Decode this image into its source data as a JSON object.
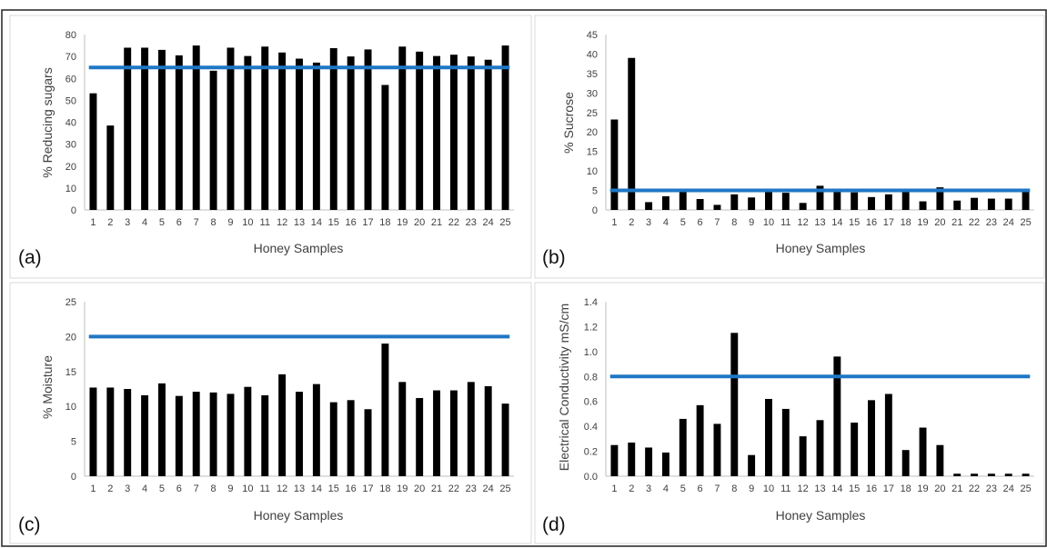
{
  "figure": {
    "colors": {
      "bar": "#000000",
      "threshold_line": "#1f77c4",
      "panel_border": "#d9d9d9",
      "axis": "#bfbfbf"
    }
  },
  "chart_data": [
    {
      "panel": "(a)",
      "type": "bar",
      "title": "",
      "xlabel": "Honey Samples",
      "ylabel": "% Reducing sugars",
      "ylim": [
        0,
        80
      ],
      "yticks": [
        "0",
        "10",
        "20",
        "30",
        "40",
        "50",
        "60",
        "70",
        "80"
      ],
      "categories": [
        "1",
        "2",
        "3",
        "4",
        "5",
        "6",
        "7",
        "8",
        "9",
        "10",
        "11",
        "12",
        "13",
        "14",
        "15",
        "16",
        "17",
        "18",
        "19",
        "20",
        "21",
        "22",
        "23",
        "24",
        "25"
      ],
      "values": [
        53.2,
        38.5,
        74,
        74,
        73,
        70.5,
        75,
        63.5,
        74,
        70.2,
        74.5,
        71.8,
        69,
        67.2,
        73.8,
        70,
        73.2,
        57,
        74.5,
        72.2,
        70.2,
        70.8,
        70,
        68.5,
        75
      ],
      "threshold": 65,
      "grid": false
    },
    {
      "panel": "(b)",
      "type": "bar",
      "title": "",
      "xlabel": "Honey Samples",
      "ylabel": "% Sucrose",
      "ylim": [
        0,
        45
      ],
      "yticks": [
        "0",
        "5",
        "10",
        "15",
        "20",
        "25",
        "30",
        "35",
        "40",
        "45"
      ],
      "categories": [
        "1",
        "2",
        "3",
        "4",
        "5",
        "6",
        "7",
        "8",
        "9",
        "10",
        "11",
        "12",
        "13",
        "14",
        "15",
        "16",
        "17",
        "18",
        "19",
        "20",
        "21",
        "22",
        "23",
        "24",
        "25"
      ],
      "values": [
        23.2,
        39,
        2,
        3.5,
        4.8,
        2.8,
        1.3,
        4,
        3.2,
        4.7,
        4.4,
        1.8,
        6.2,
        5,
        4.5,
        3.3,
        4,
        4.8,
        2.2,
        5.8,
        2.4,
        3.1,
        2.9,
        2.9,
        5
      ],
      "threshold": 5,
      "grid": false
    },
    {
      "panel": "(c)",
      "type": "bar",
      "title": "",
      "xlabel": "Honey Samples",
      "ylabel": "% Moisture",
      "ylim": [
        0,
        25
      ],
      "yticks": [
        "0",
        "5",
        "10",
        "15",
        "20",
        "25"
      ],
      "categories": [
        "1",
        "2",
        "3",
        "4",
        "5",
        "6",
        "7",
        "8",
        "9",
        "10",
        "11",
        "12",
        "13",
        "14",
        "15",
        "16",
        "17",
        "18",
        "19",
        "20",
        "21",
        "22",
        "23",
        "24",
        "25"
      ],
      "values": [
        12.7,
        12.7,
        12.5,
        11.6,
        13.3,
        11.5,
        12.1,
        12,
        11.8,
        12.8,
        11.6,
        14.6,
        12.1,
        13.2,
        10.6,
        10.9,
        9.6,
        19,
        13.5,
        11.2,
        12.3,
        12.3,
        13.5,
        12.9,
        10.4
      ],
      "threshold": 20,
      "grid": false
    },
    {
      "panel": "(d)",
      "type": "bar",
      "title": "",
      "xlabel": "Honey Samples",
      "ylabel": "Electrical Conductivity mS/cm",
      "ylim": [
        0,
        1.4
      ],
      "yticks": [
        "0.0",
        "0.2",
        "0.4",
        "0.6",
        "0.8",
        "1.0",
        "1.2",
        "1.4"
      ],
      "categories": [
        "1",
        "2",
        "3",
        "4",
        "5",
        "6",
        "7",
        "8",
        "9",
        "10",
        "11",
        "12",
        "13",
        "14",
        "15",
        "16",
        "17",
        "18",
        "19",
        "20",
        "21",
        "22",
        "23",
        "24",
        "25"
      ],
      "values": [
        0.25,
        0.27,
        0.23,
        0.19,
        0.46,
        0.57,
        0.42,
        1.15,
        0.17,
        0.62,
        0.54,
        0.32,
        0.45,
        0.96,
        0.43,
        0.61,
        0.66,
        0.21,
        0.39,
        0.25,
        0.02,
        0.02,
        0.02,
        0.02,
        0.02
      ],
      "threshold": 0.8,
      "grid": false
    }
  ]
}
